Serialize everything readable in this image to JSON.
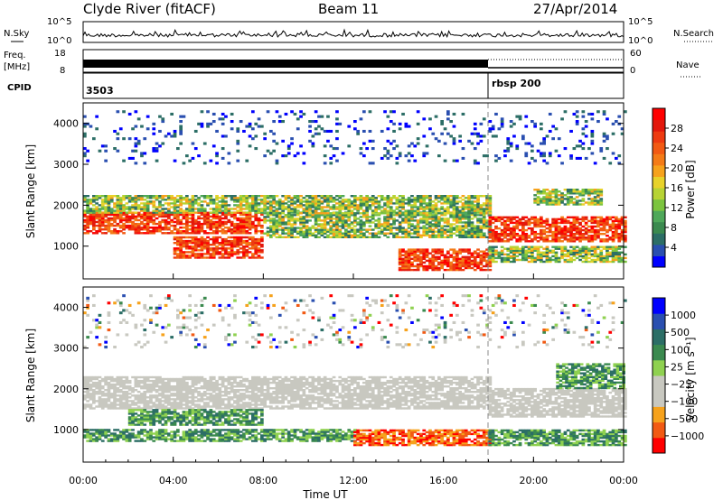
{
  "header": {
    "station": "Clyde River (fitACF)",
    "beam": "Beam 11",
    "date": "27/Apr/2014"
  },
  "top_panels": {
    "nsky_label": "N.Sky",
    "nsky_ticks": [
      "10^5",
      "10^0"
    ],
    "nsearch_label": "N.Search",
    "freq_label_1": "Freq.",
    "freq_label_2": "[MHz]",
    "freq_ticks": [
      "18",
      "8"
    ],
    "nave_label": "Nave",
    "nave_ticks": [
      "60",
      "0"
    ],
    "cpid_label": "CPID",
    "cpid_values": [
      "3503",
      "rbsp 200"
    ]
  },
  "colors": {
    "power_scale": [
      "#0000ff",
      "#2a4fb0",
      "#2c6e66",
      "#3b8a4f",
      "#4fa85a",
      "#7cc43f",
      "#b7d334",
      "#e8d22a",
      "#f6a21c",
      "#f47b17",
      "#f25a13",
      "#ee3a10",
      "#e3180c",
      "#ff0000"
    ],
    "velocity_scale": [
      "#ff0000",
      "#f25a13",
      "#f6a21c",
      "#c8c8c0",
      "#c8c8c0",
      "#8fd150",
      "#3b8a4f",
      "#2c6e66",
      "#2a4fb0",
      "#0000ff"
    ],
    "grey": "#c8c8c0"
  },
  "chart_data": [
    {
      "type": "heatmap",
      "name_hint": "power",
      "ylabel": "Slant Range [km]",
      "xlabel": "",
      "ylim": [
        200,
        4500
      ],
      "yticks": [
        "4000",
        "3000",
        "2000",
        "1000"
      ],
      "ytick_values": [
        4000,
        3000,
        2000,
        1000
      ],
      "xlim_hours": [
        0,
        24
      ],
      "colorbar_label": "Power [dB]",
      "colorbar_ticks": [
        "28",
        "24",
        "20",
        "16",
        "12",
        "8",
        "4"
      ],
      "colorbar_range": [
        0,
        30
      ],
      "reference_time_hours": 18.0,
      "bands": [
        {
          "t0": 0,
          "t1": 8,
          "r0": 1300,
          "r1": 1800,
          "level": "high"
        },
        {
          "t0": 0,
          "t1": 18,
          "r0": 1800,
          "r1": 2250,
          "level": "mid"
        },
        {
          "t0": 4,
          "t1": 8,
          "r0": 700,
          "r1": 1200,
          "level": "high"
        },
        {
          "t0": 8,
          "t1": 18,
          "r0": 1200,
          "r1": 1800,
          "level": "mid"
        },
        {
          "t0": 14,
          "t1": 18,
          "r0": 400,
          "r1": 900,
          "level": "high"
        },
        {
          "t0": 18,
          "t1": 24,
          "r0": 1100,
          "r1": 1700,
          "level": "high"
        },
        {
          "t0": 18,
          "t1": 24,
          "r0": 600,
          "r1": 1000,
          "level": "mid"
        },
        {
          "t0": 20,
          "t1": 23,
          "r0": 2000,
          "r1": 2400,
          "level": "mid"
        },
        {
          "t0": 0,
          "t1": 24,
          "r0": 3000,
          "r1": 4300,
          "level": "sparse"
        }
      ]
    },
    {
      "type": "heatmap",
      "name_hint": "velocity",
      "ylabel": "Slant Range [km]",
      "xlabel": "Time UT",
      "ylim": [
        200,
        4500
      ],
      "yticks": [
        "4000",
        "3000",
        "2000",
        "1000"
      ],
      "ytick_values": [
        4000,
        3000,
        2000,
        1000
      ],
      "xlim_hours": [
        0,
        24
      ],
      "xticks": [
        "00:00",
        "04:00",
        "08:00",
        "12:00",
        "16:00",
        "20:00",
        "00:00"
      ],
      "xtick_hours": [
        0,
        4,
        8,
        12,
        16,
        20,
        24
      ],
      "colorbar_label": "Velocity [m s⁻¹]",
      "colorbar_ticks": [
        "1000",
        "500",
        "100",
        "25",
        "−25",
        "−100",
        "−500",
        "−1000"
      ],
      "reference_time_hours": 18.0,
      "bands": [
        {
          "t0": 0,
          "t1": 18,
          "r0": 1500,
          "r1": 2300,
          "level": "grey"
        },
        {
          "t0": 18,
          "t1": 24,
          "r0": 1300,
          "r1": 2000,
          "level": "grey"
        },
        {
          "t0": 2,
          "t1": 8,
          "r0": 1100,
          "r1": 1500,
          "level": "green"
        },
        {
          "t0": 0,
          "t1": 12,
          "r0": 700,
          "r1": 1000,
          "level": "green"
        },
        {
          "t0": 12,
          "t1": 18,
          "r0": 600,
          "r1": 1000,
          "level": "orange"
        },
        {
          "t0": 18,
          "t1": 24,
          "r0": 600,
          "r1": 1000,
          "level": "green"
        },
        {
          "t0": 21,
          "t1": 24,
          "r0": 2000,
          "r1": 2600,
          "level": "green"
        },
        {
          "t0": 0,
          "t1": 24,
          "r0": 3000,
          "r1": 4300,
          "level": "sparse"
        }
      ]
    }
  ]
}
